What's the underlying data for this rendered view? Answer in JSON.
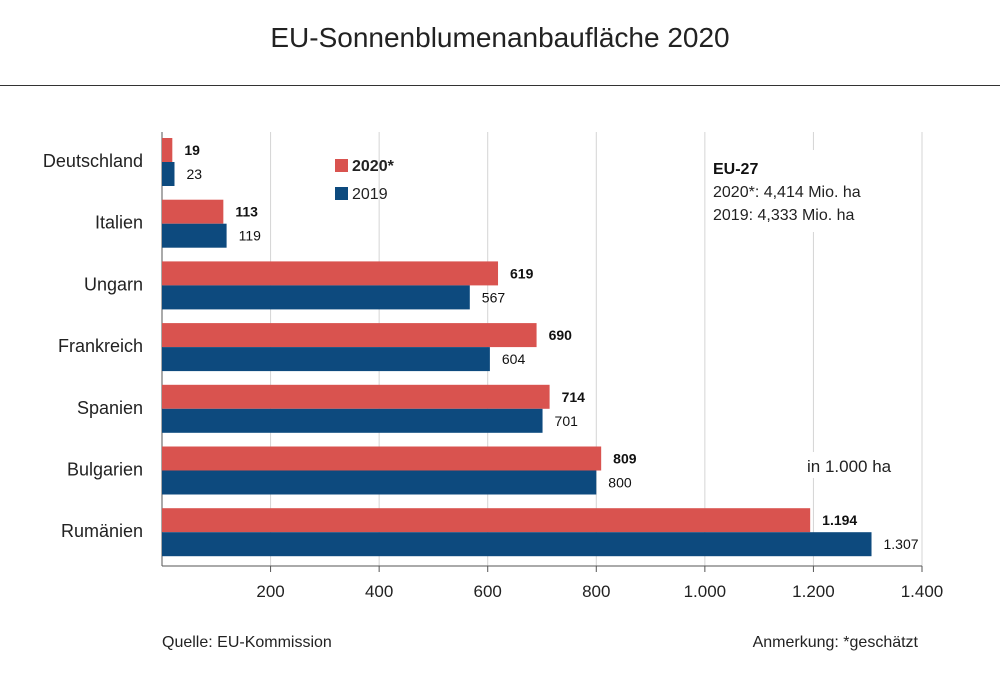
{
  "title": "EU-Sonnenblumenanbaufläche  2020",
  "footer": {
    "source": "Quelle:  EU-Kommission",
    "note": "Anmerkung: *geschätzt"
  },
  "chart_data": {
    "type": "bar",
    "orientation": "horizontal",
    "unit_note": "in 1.000  ha",
    "categories": [
      "Deutschland",
      "Italien",
      "Ungarn",
      "Frankreich",
      "Spanien",
      "Bulgarien",
      "Rumänien"
    ],
    "series": [
      {
        "name": "2020*",
        "color": "#d9534f",
        "values": [
          19,
          113,
          619,
          690,
          714,
          809,
          1194
        ],
        "labels": [
          "19",
          "113",
          "619",
          "690",
          "714",
          "809",
          "1.194"
        ],
        "label_bold": true
      },
      {
        "name": "2019",
        "color": "#0d4a7e",
        "values": [
          23,
          119,
          567,
          604,
          701,
          800,
          1307
        ],
        "labels": [
          "23",
          "119",
          "567",
          "604",
          "701",
          "800",
          "1.307"
        ],
        "label_bold": false
      }
    ],
    "xlim": [
      0,
      1400
    ],
    "x_ticks": [
      200,
      400,
      600,
      800,
      1000,
      1200,
      1400
    ],
    "x_tick_labels": [
      "200",
      "400",
      "600",
      "800",
      "1.000",
      "1.200",
      "1.400"
    ],
    "grid": true,
    "legend_position": "top-center",
    "annotation": {
      "title": "EU-27",
      "lines": [
        "2020*: 4,414 Mio. ha",
        "2019: 4,333 Mio. ha"
      ]
    }
  }
}
